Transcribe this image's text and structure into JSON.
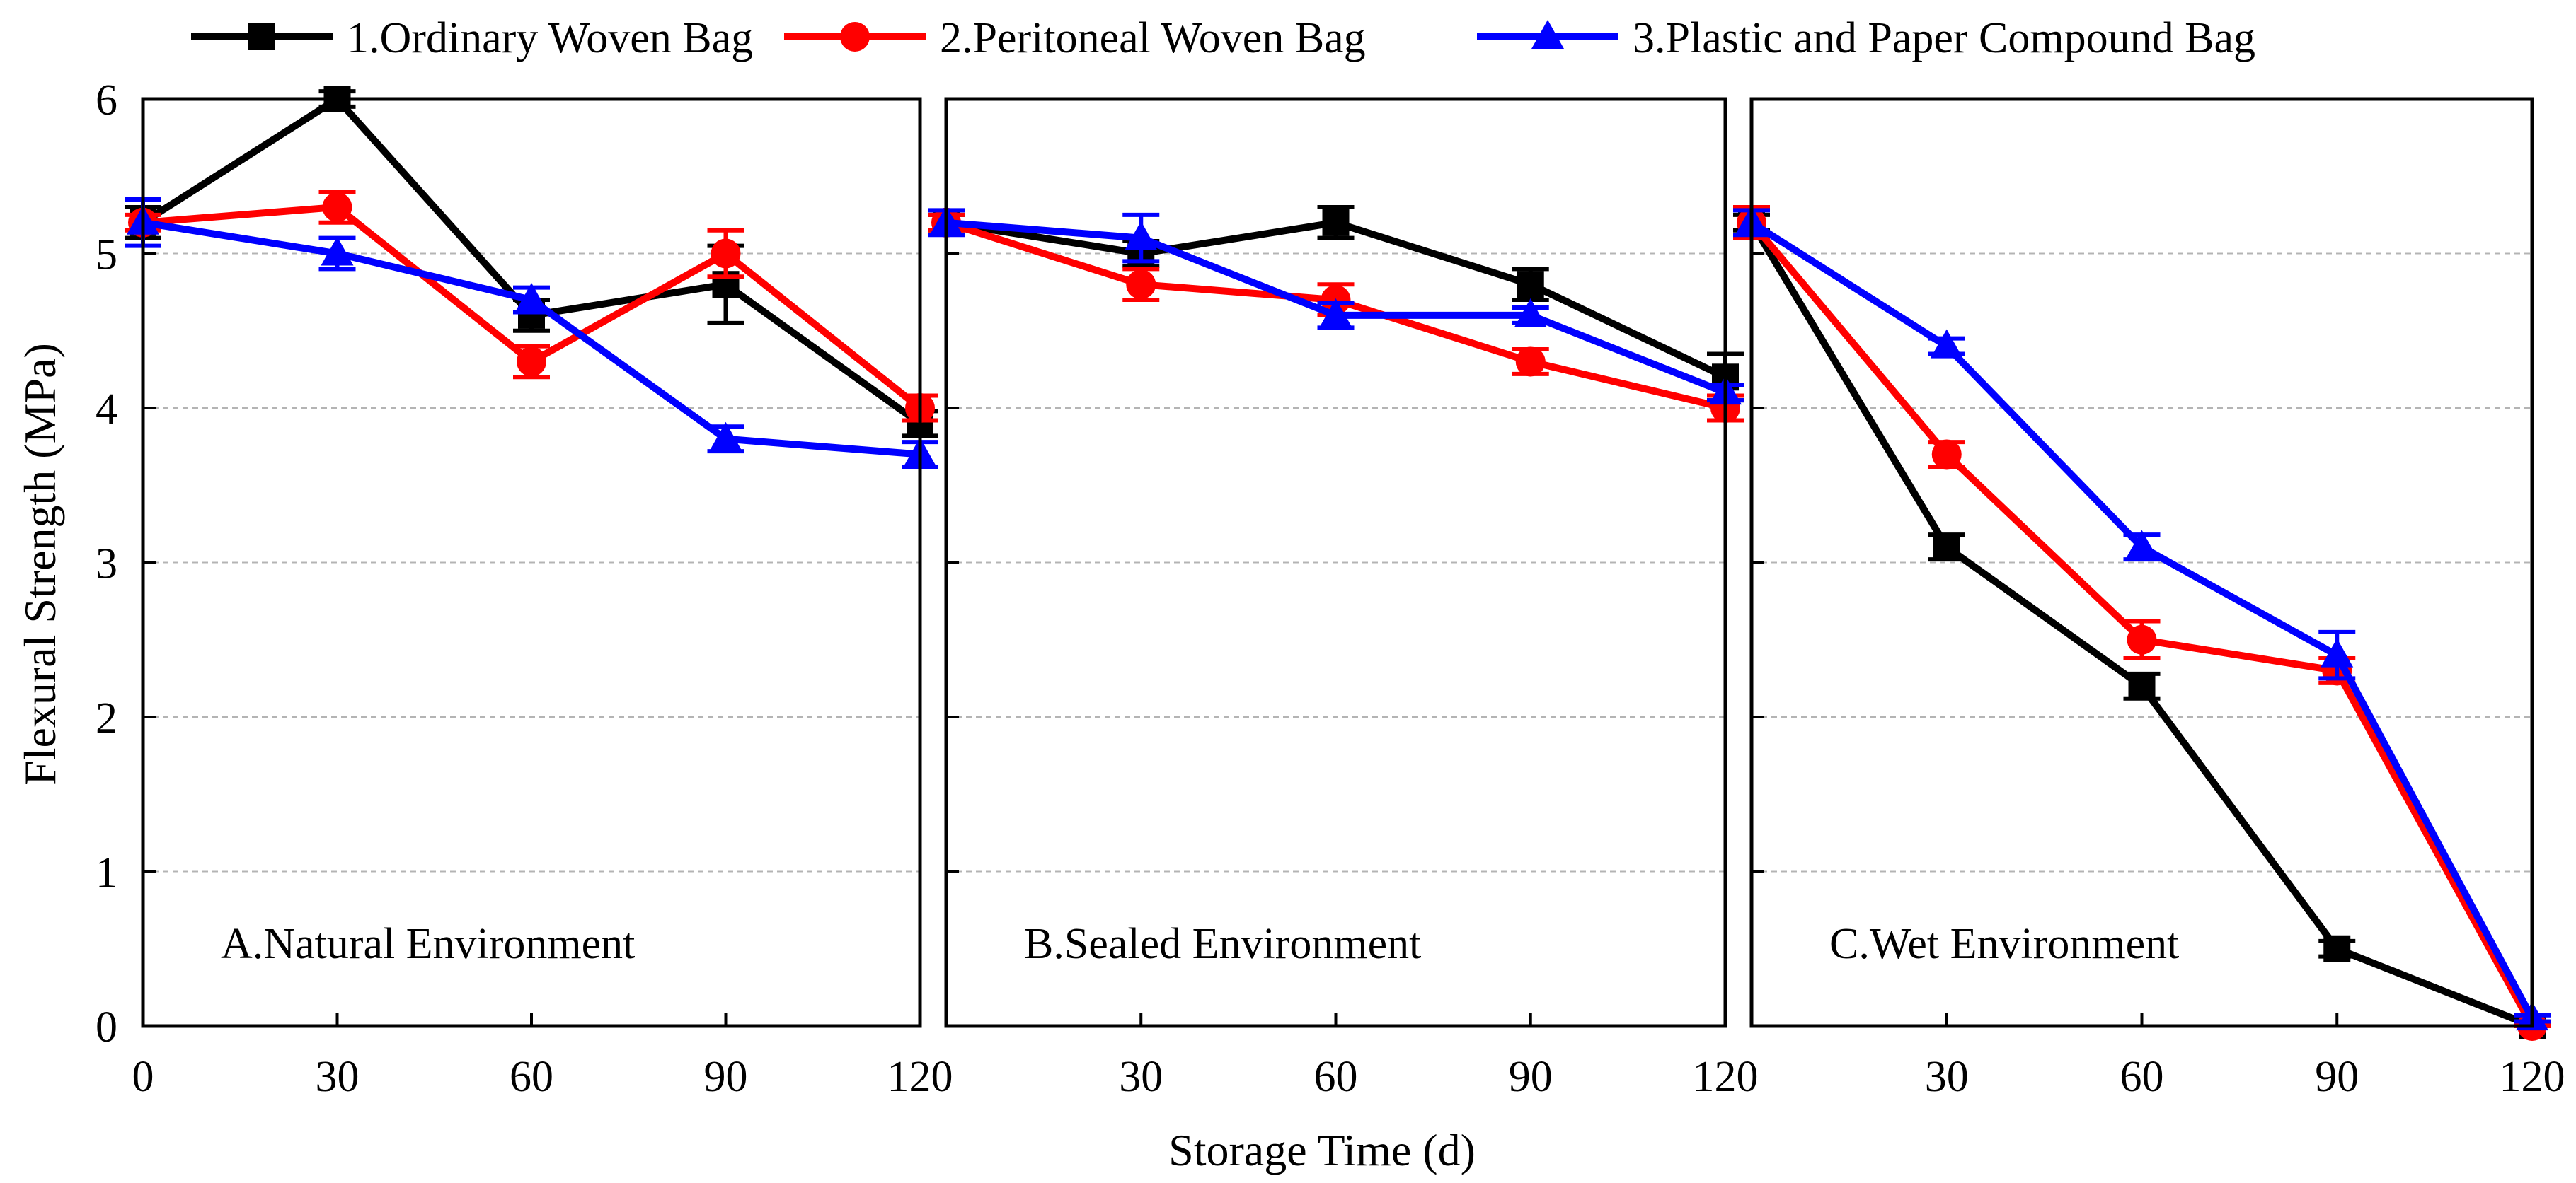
{
  "chart_data": {
    "type": "line",
    "xlabel": "Storage Time (d)",
    "ylabel": "Flexural Strength (MPa)",
    "ylim": [
      0,
      6
    ],
    "yticks": [
      0,
      1,
      2,
      3,
      4,
      5,
      6
    ],
    "grid": "horizontal dashed",
    "legend": {
      "position": "top",
      "entries": [
        {
          "label": "1.Ordinary Woven Bag",
          "color": "#000000",
          "marker": "square"
        },
        {
          "label": "2.Peritoneal Woven Bag",
          "color": "#ff0000",
          "marker": "circle"
        },
        {
          "label": "3.Plastic and Paper Compound Bag",
          "color": "#0000ff",
          "marker": "triangle"
        }
      ]
    },
    "panels": [
      {
        "title": "A.Natural Environment",
        "x": [
          0,
          30,
          60,
          90,
          120
        ],
        "xticks": [
          "0",
          "30",
          "60",
          "90",
          "120"
        ],
        "series": [
          {
            "name": "1.Ordinary Woven Bag",
            "values": [
              5.2,
              6.0,
              4.6,
              4.8,
              3.9
            ],
            "err": [
              0.1,
              0.05,
              0.1,
              0.25,
              0.08
            ]
          },
          {
            "name": "2.Peritoneal Woven Bag",
            "values": [
              5.2,
              5.3,
              4.3,
              5.0,
              4.0
            ],
            "err": [
              0.05,
              0.1,
              0.1,
              0.15,
              0.08
            ]
          },
          {
            "name": "3.Plastic and Paper Compound Bag",
            "values": [
              5.2,
              5.0,
              4.7,
              3.8,
              3.7
            ],
            "err": [
              0.15,
              0.1,
              0.08,
              0.08,
              0.08
            ]
          }
        ]
      },
      {
        "title": "B.Sealed Environment",
        "x": [
          0,
          30,
          60,
          90,
          120
        ],
        "xticks": [
          "",
          "30",
          "60",
          "90",
          "120"
        ],
        "series": [
          {
            "name": "1.Ordinary Woven Bag",
            "values": [
              5.2,
              5.0,
              5.2,
              4.8,
              4.2
            ],
            "err": [
              0.05,
              0.08,
              0.1,
              0.1,
              0.15
            ]
          },
          {
            "name": "2.Peritoneal Woven Bag",
            "values": [
              5.2,
              4.8,
              4.7,
              4.3,
              4.0
            ],
            "err": [
              0.05,
              0.1,
              0.1,
              0.08,
              0.08
            ]
          },
          {
            "name": "3.Plastic and Paper Compound Bag",
            "values": [
              5.2,
              5.1,
              4.6,
              4.6,
              4.1
            ],
            "err": [
              0.08,
              0.15,
              0.08,
              0.05,
              0.05
            ]
          }
        ]
      },
      {
        "title": "C.Wet Environment",
        "x": [
          0,
          30,
          60,
          90,
          120
        ],
        "xticks": [
          "",
          "30",
          "60",
          "90",
          "120"
        ],
        "series": [
          {
            "name": "1.Ordinary Woven Bag",
            "values": [
              5.2,
              3.1,
              2.2,
              0.5,
              0.0
            ],
            "err": [
              0.05,
              0.08,
              0.08,
              0.05,
              0.02
            ]
          },
          {
            "name": "2.Peritoneal Woven Bag",
            "values": [
              5.2,
              3.7,
              2.5,
              2.3,
              0.0
            ],
            "err": [
              0.1,
              0.08,
              0.12,
              0.08,
              0.02
            ]
          },
          {
            "name": "3.Plastic and Paper Compound Bag",
            "values": [
              5.2,
              4.4,
              3.1,
              2.4,
              0.05
            ],
            "err": [
              0.08,
              0.05,
              0.08,
              0.15,
              0.02
            ]
          }
        ]
      }
    ]
  }
}
